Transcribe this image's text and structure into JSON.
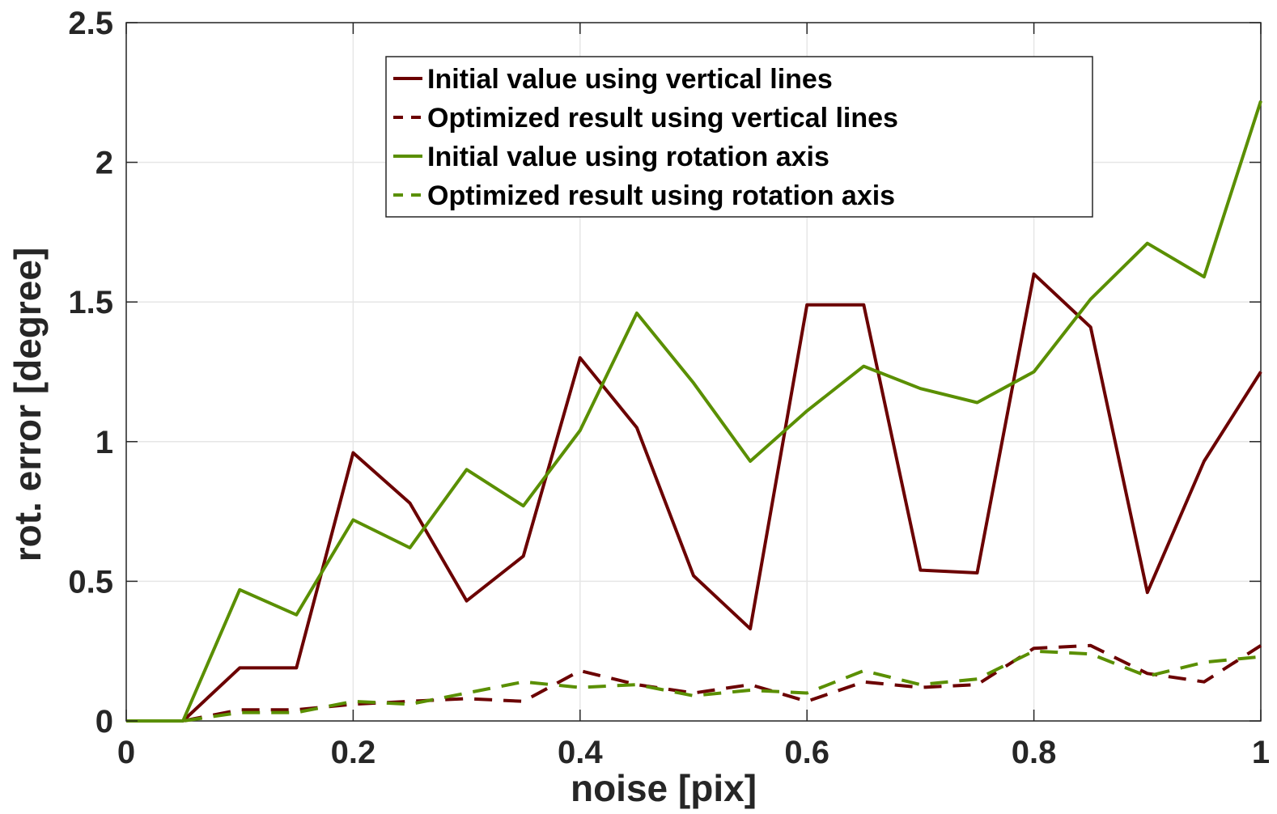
{
  "chart_data": {
    "type": "line",
    "title": "",
    "xlabel": "noise [pix]",
    "ylabel": "rot. error [degree]",
    "xlim": [
      0,
      1
    ],
    "ylim": [
      0,
      2.5
    ],
    "grid": true,
    "legend_position": "top-center",
    "x": [
      0,
      0.05,
      0.1,
      0.15,
      0.2,
      0.25,
      0.3,
      0.35,
      0.4,
      0.45,
      0.5,
      0.55,
      0.6,
      0.65,
      0.7,
      0.75,
      0.8,
      0.85,
      0.9,
      0.95,
      1.0
    ],
    "xticks": [
      0,
      0.2,
      0.4,
      0.6,
      0.8,
      1
    ],
    "xtick_labels": [
      "0",
      "0.2",
      "0.4",
      "0.6",
      "0.8",
      "1"
    ],
    "yticks": [
      0,
      0.5,
      1,
      1.5,
      2,
      2.5
    ],
    "ytick_labels": [
      "0",
      "0.5",
      "1",
      "1.5",
      "2",
      "2.5"
    ],
    "series": [
      {
        "name": "Initial value using vertical lines",
        "color": "#6b0000",
        "dash": "solid",
        "values": [
          0,
          0,
          0.19,
          0.19,
          0.96,
          0.78,
          0.43,
          0.59,
          1.3,
          1.05,
          0.52,
          0.33,
          1.49,
          1.49,
          0.54,
          0.53,
          1.6,
          1.41,
          0.46,
          0.93,
          1.25
        ]
      },
      {
        "name": "Optimized result using vertical lines",
        "color": "#6b0000",
        "dash": "dashed",
        "values": [
          0,
          0,
          0.04,
          0.04,
          0.06,
          0.07,
          0.08,
          0.07,
          0.18,
          0.13,
          0.1,
          0.13,
          0.07,
          0.14,
          0.12,
          0.13,
          0.26,
          0.27,
          0.17,
          0.14,
          0.27
        ]
      },
      {
        "name": "Initial value using rotation axis",
        "color": "#5a8f00",
        "dash": "solid",
        "values": [
          0,
          0,
          0.47,
          0.38,
          0.72,
          0.62,
          0.9,
          0.77,
          1.04,
          1.46,
          1.21,
          0.93,
          1.11,
          1.27,
          1.19,
          1.14,
          1.25,
          1.51,
          1.71,
          1.59,
          2.22
        ]
      },
      {
        "name": "Optimized result using rotation axis",
        "color": "#5a8f00",
        "dash": "dashed",
        "values": [
          0,
          0,
          0.03,
          0.03,
          0.07,
          0.06,
          0.1,
          0.14,
          0.12,
          0.13,
          0.09,
          0.11,
          0.1,
          0.18,
          0.13,
          0.15,
          0.25,
          0.24,
          0.16,
          0.21,
          0.23
        ]
      }
    ]
  }
}
